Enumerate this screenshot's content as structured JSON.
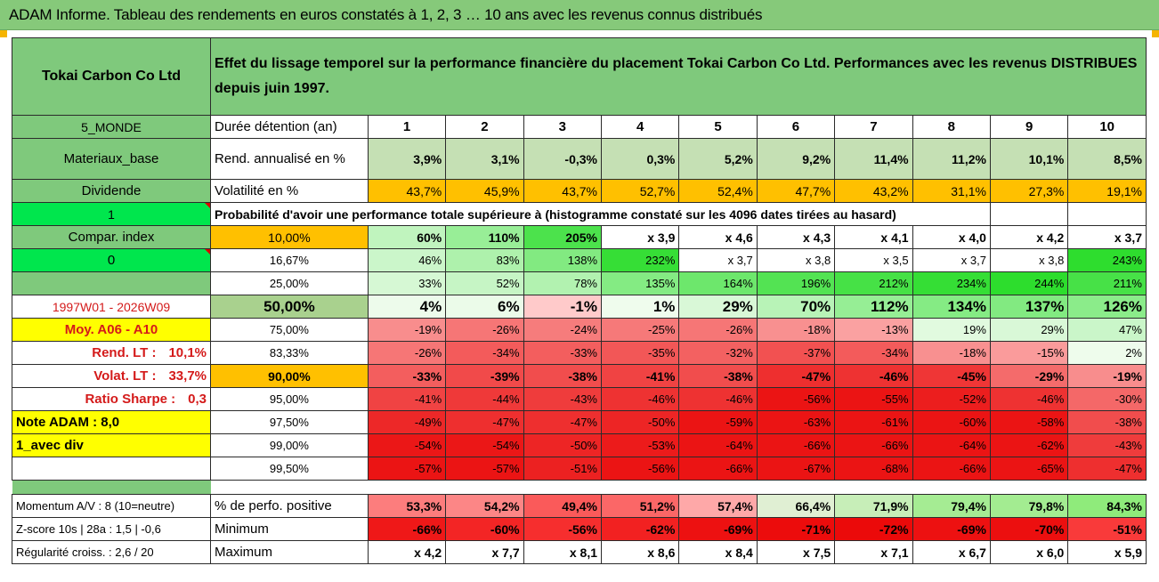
{
  "title": "ADAM Informe. Tableau des rendements en euros constatés à 1, 2, 3 … 10 ans avec les revenus connus distribués",
  "company": "Tokai Carbon Co Ltd",
  "description": "Effet du lissage temporel sur la performance financière du placement Tokai Carbon Co Ltd. Performances avec les revenus DISTRIBUES depuis juin 1997.",
  "left": {
    "region": "5_MONDE",
    "sector": "Materiaux_base",
    "dividend": "Dividende",
    "one": "1",
    "compar": "Compar. index",
    "zero": "0",
    "period": "1997W01 - 2026W09",
    "moy": "Moy. A06 - A10",
    "rend_lt_label": "Rend. LT :",
    "rend_lt_value": "10,1%",
    "volat_lt_label": "Volat. LT :",
    "volat_lt_value": "33,7%",
    "sharpe_label": "Ratio Sharpe :",
    "sharpe_value": "0,3",
    "note": "Note ADAM : 8,0",
    "avec_div": "1_avec div",
    "momentum": "Momentum A/V : 8 (10=neutre)",
    "zscore": "Z-score 10s | 28a : 1,5 | -0,6",
    "regularite": "Régularité croiss. : 2,6 / 20"
  },
  "header": {
    "label": "Durée détention (an)",
    "years": [
      "1",
      "2",
      "3",
      "4",
      "5",
      "6",
      "7",
      "8",
      "9",
      "10"
    ]
  },
  "rend": {
    "label": "Rend. annualisé en %",
    "values": [
      "3,9%",
      "3,1%",
      "-0,3%",
      "0,3%",
      "5,2%",
      "9,2%",
      "11,4%",
      "11,2%",
      "10,1%",
      "8,5%"
    ]
  },
  "vol": {
    "label": "Volatilité en %",
    "values": [
      "43,7%",
      "45,9%",
      "43,7%",
      "52,7%",
      "52,4%",
      "47,7%",
      "43,2%",
      "31,1%",
      "27,3%",
      "19,1%"
    ]
  },
  "prob_label": "Probabilité d'avoir une performance totale supérieure à (histogramme constaté sur les 4096 dates tirées au hasard)",
  "quantiles": [
    {
      "p": "10,00%",
      "values": [
        "60%",
        "110%",
        "205%",
        "x 3,9",
        "x 4,6",
        "x 4,3",
        "x 4,1",
        "x 4,0",
        "x 4,2",
        "x 3,7"
      ]
    },
    {
      "p": "16,67%",
      "values": [
        "46%",
        "83%",
        "138%",
        "232%",
        "x 3,7",
        "x 3,8",
        "x 3,5",
        "x 3,7",
        "x 3,8",
        "243%"
      ]
    },
    {
      "p": "25,00%",
      "values": [
        "33%",
        "52%",
        "78%",
        "135%",
        "164%",
        "196%",
        "212%",
        "234%",
        "244%",
        "211%"
      ]
    },
    {
      "p": "50,00%",
      "values": [
        "4%",
        "6%",
        "-1%",
        "1%",
        "29%",
        "70%",
        "112%",
        "134%",
        "137%",
        "126%"
      ]
    },
    {
      "p": "75,00%",
      "values": [
        "-19%",
        "-26%",
        "-24%",
        "-25%",
        "-26%",
        "-18%",
        "-13%",
        "19%",
        "29%",
        "47%"
      ]
    },
    {
      "p": "83,33%",
      "values": [
        "-26%",
        "-34%",
        "-33%",
        "-35%",
        "-32%",
        "-37%",
        "-34%",
        "-18%",
        "-15%",
        "2%"
      ]
    },
    {
      "p": "90,00%",
      "values": [
        "-33%",
        "-39%",
        "-38%",
        "-41%",
        "-38%",
        "-47%",
        "-46%",
        "-45%",
        "-29%",
        "-19%"
      ]
    },
    {
      "p": "95,00%",
      "values": [
        "-41%",
        "-44%",
        "-43%",
        "-46%",
        "-46%",
        "-56%",
        "-55%",
        "-52%",
        "-46%",
        "-30%"
      ]
    },
    {
      "p": "97,50%",
      "values": [
        "-49%",
        "-47%",
        "-47%",
        "-50%",
        "-59%",
        "-63%",
        "-61%",
        "-60%",
        "-58%",
        "-38%"
      ]
    },
    {
      "p": "99,00%",
      "values": [
        "-54%",
        "-54%",
        "-50%",
        "-53%",
        "-64%",
        "-66%",
        "-66%",
        "-64%",
        "-62%",
        "-43%"
      ]
    },
    {
      "p": "99,50%",
      "values": [
        "-57%",
        "-57%",
        "-51%",
        "-56%",
        "-66%",
        "-67%",
        "-68%",
        "-66%",
        "-65%",
        "-47%"
      ]
    }
  ],
  "pos": {
    "label": "% de perfo. positive",
    "values": [
      "53,3%",
      "54,2%",
      "49,4%",
      "51,2%",
      "57,4%",
      "66,4%",
      "71,9%",
      "79,4%",
      "79,8%",
      "84,3%"
    ]
  },
  "min": {
    "label": "Minimum",
    "values": [
      "-66%",
      "-60%",
      "-56%",
      "-62%",
      "-69%",
      "-71%",
      "-72%",
      "-69%",
      "-70%",
      "-51%"
    ]
  },
  "max": {
    "label": "Maximum",
    "values": [
      "x 4,2",
      "x 7,7",
      "x 8,1",
      "x 8,6",
      "x 8,4",
      "x 7,5",
      "x 7,1",
      "x 6,7",
      "x 6,0",
      "x 5,9"
    ]
  },
  "colors": {
    "header_green": "#86c97a",
    "label_green": "#7fc97c",
    "yellow": "#ffff00",
    "orange": "#ffc000",
    "accent_red": "#d41a1a"
  }
}
